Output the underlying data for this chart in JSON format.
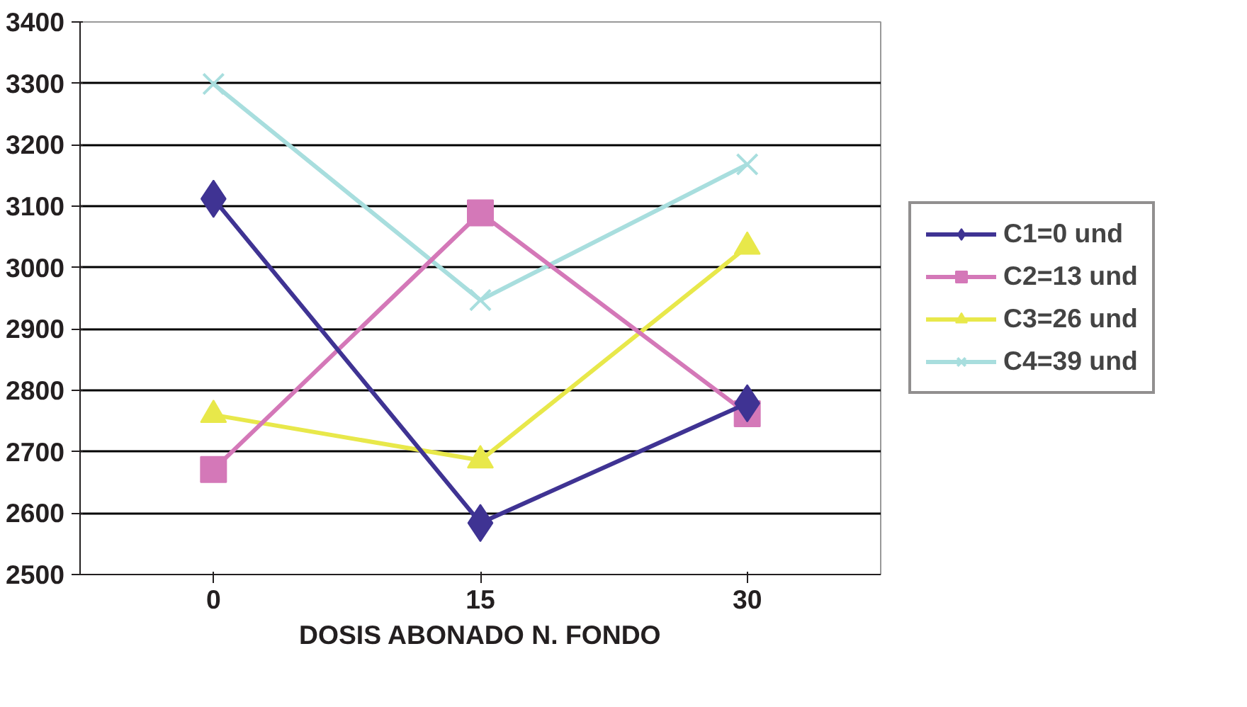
{
  "chart_data": {
    "type": "line",
    "xlabel": "DOSIS ABONADO N. FONDO",
    "categories": [
      "0",
      "15",
      "30"
    ],
    "series": [
      {
        "name": "C1=0 und",
        "color": "#3f3393",
        "marker": "diamond",
        "values": [
          3112,
          2584,
          2779
        ]
      },
      {
        "name": "C2=13 und",
        "color": "#d478b8",
        "marker": "square",
        "values": [
          2671,
          3089,
          2762
        ]
      },
      {
        "name": "C3=26 und",
        "color": "#e8e84a",
        "marker": "triangle",
        "values": [
          2760,
          2686,
          3034
        ]
      },
      {
        "name": "C4=39 und",
        "color": "#a8dede",
        "marker": "cross",
        "values": [
          3299,
          2947,
          3168
        ]
      }
    ],
    "ylim": [
      2500,
      3400
    ],
    "yticks": [
      2500,
      2600,
      2700,
      2800,
      2900,
      3000,
      3100,
      3200,
      3300,
      3400
    ],
    "grid": "y",
    "legend": "right"
  }
}
